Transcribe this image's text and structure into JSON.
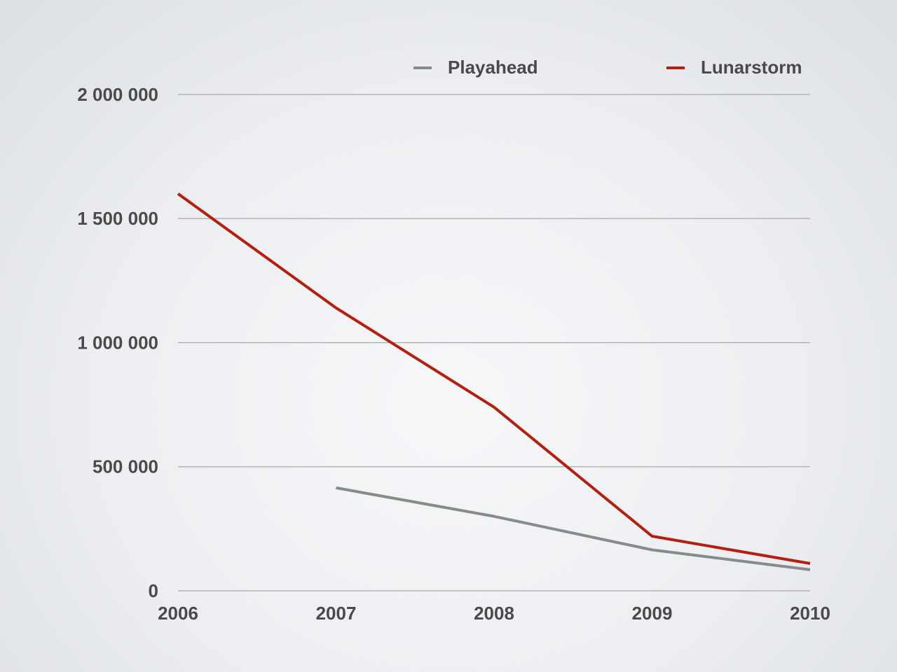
{
  "chart_data": {
    "type": "line",
    "x": [
      2006,
      2007,
      2008,
      2009,
      2010
    ],
    "xlim": [
      2006,
      2010
    ],
    "xticks": [
      2006,
      2007,
      2008,
      2009,
      2010
    ],
    "ylim": [
      0,
      2000000
    ],
    "yticks": [
      0,
      {
        "value": 500000,
        "label": "500 000"
      },
      {
        "value": 1000000,
        "label": "1 000 000"
      },
      {
        "value": 1500000,
        "label": "1 500 000"
      },
      {
        "value": 2000000,
        "label": "2 000 000"
      }
    ],
    "grid": true,
    "legend": "top",
    "series": [
      {
        "name": "Playahead",
        "color": "#878b89",
        "values": [
          null,
          415000,
          300000,
          165000,
          85000
        ]
      },
      {
        "name": "Lunarstorm",
        "color": "#b51f10",
        "values": [
          1600000,
          1140000,
          740000,
          220000,
          110000
        ]
      }
    ]
  }
}
